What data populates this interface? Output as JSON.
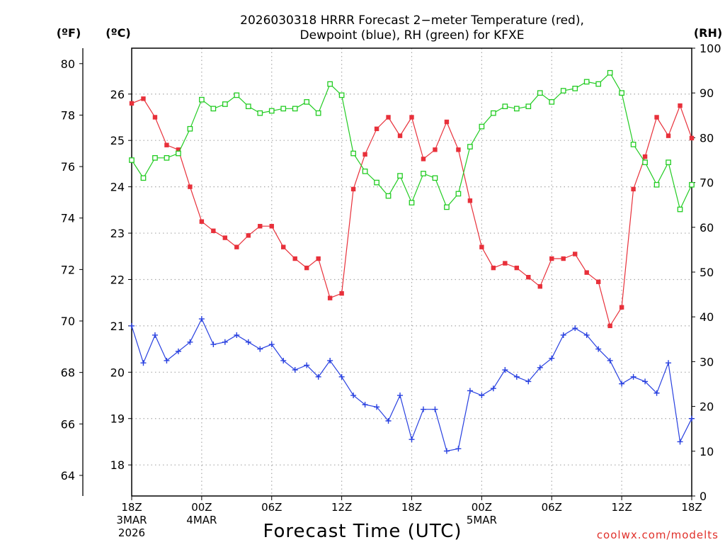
{
  "chart_data": {
    "type": "line",
    "title": [
      "2026030318 HRRR Forecast 2−meter Temperature (red),",
      "Dewpoint (blue), RH (green) for KFXE"
    ],
    "units": {
      "fahrenheit": "(ºF)",
      "celsius": "(ºC)",
      "rh": "(RH)"
    },
    "xlabel": "Forecast Time (UTC)",
    "credit": "coolwx.com/modelts",
    "x_range_hours": [
      0,
      48
    ],
    "celsius_axis": {
      "ylim": [
        17.33,
        26.99
      ],
      "ticks": [
        "18",
        "19",
        "20",
        "21",
        "22",
        "23",
        "24",
        "25",
        "26"
      ]
    },
    "fahrenheit_axis": {
      "ylim": [
        63.2,
        80.6
      ],
      "ticks": [
        "64",
        "66",
        "68",
        "70",
        "72",
        "74",
        "76",
        "78",
        "80"
      ]
    },
    "rh_axis": {
      "ylim": [
        0,
        100
      ],
      "ticks": [
        "0",
        "10",
        "20",
        "30",
        "40",
        "50",
        "60",
        "70",
        "80",
        "90",
        "100"
      ]
    },
    "x_ticks": [
      {
        "hour": 0,
        "lines": [
          "18Z",
          "3MAR",
          "2026"
        ]
      },
      {
        "hour": 6,
        "lines": [
          "00Z",
          "4MAR"
        ]
      },
      {
        "hour": 12,
        "lines": [
          "06Z"
        ]
      },
      {
        "hour": 18,
        "lines": [
          "12Z"
        ]
      },
      {
        "hour": 24,
        "lines": [
          "18Z"
        ]
      },
      {
        "hour": 30,
        "lines": [
          "00Z",
          "5MAR"
        ]
      },
      {
        "hour": 36,
        "lines": [
          "06Z"
        ]
      },
      {
        "hour": 42,
        "lines": [
          "12Z"
        ]
      },
      {
        "hour": 48,
        "lines": [
          "18Z"
        ]
      }
    ],
    "hours": [
      0,
      1,
      2,
      3,
      4,
      5,
      6,
      7,
      8,
      9,
      10,
      11,
      12,
      13,
      14,
      15,
      16,
      17,
      18,
      19,
      20,
      21,
      22,
      23,
      24,
      25,
      26,
      27,
      28,
      29,
      30,
      31,
      32,
      33,
      34,
      35,
      36,
      37,
      38,
      39,
      40,
      41,
      42,
      43,
      44,
      45,
      46,
      47,
      48
    ],
    "series": [
      {
        "name": "Temperature",
        "units": "C",
        "color": "#e8303a",
        "marker": "filled-square",
        "values": [
          25.8,
          25.9,
          25.5,
          24.9,
          24.8,
          24.0,
          23.25,
          23.05,
          22.9,
          22.7,
          22.95,
          23.15,
          23.15,
          22.7,
          22.45,
          22.25,
          22.45,
          21.6,
          21.7,
          23.95,
          24.7,
          25.25,
          25.5,
          25.1,
          25.5,
          24.6,
          24.8,
          25.4,
          24.8,
          23.7,
          22.7,
          22.25,
          22.35,
          22.25,
          22.05,
          21.85,
          22.45,
          22.45,
          22.55,
          22.15,
          21.95,
          21.0,
          21.4,
          23.95,
          24.65,
          25.5,
          25.1,
          25.75,
          25.05
        ]
      },
      {
        "name": "Dewpoint",
        "units": "C",
        "color": "#2840e0",
        "marker": "plus",
        "values": [
          21.0,
          20.2,
          20.8,
          20.25,
          20.45,
          20.65,
          21.15,
          20.6,
          20.65,
          20.8,
          20.65,
          20.5,
          20.6,
          20.25,
          20.05,
          20.15,
          19.9,
          20.25,
          19.9,
          19.5,
          19.3,
          19.25,
          18.95,
          19.5,
          18.55,
          19.2,
          19.2,
          18.3,
          18.35,
          19.6,
          19.5,
          19.65,
          20.05,
          19.9,
          19.8,
          20.1,
          20.3,
          20.8,
          20.95,
          20.8,
          20.5,
          20.25,
          19.75,
          19.9,
          19.8,
          19.55,
          20.2,
          18.5,
          19.0
        ]
      },
      {
        "name": "RH",
        "units": "%",
        "color": "#22cc22",
        "marker": "open-square",
        "values": [
          75.0,
          71.0,
          75.5,
          75.5,
          76.5,
          82.0,
          88.5,
          86.5,
          87.5,
          89.5,
          87.0,
          85.5,
          86.0,
          86.5,
          86.5,
          88.0,
          85.5,
          92.0,
          89.5,
          76.5,
          72.5,
          70.0,
          67.0,
          71.5,
          65.5,
          72.0,
          71.0,
          64.5,
          67.5,
          78.0,
          82.5,
          85.5,
          87.0,
          86.5,
          87.0,
          90.0,
          88.0,
          90.5,
          91.0,
          92.5,
          92.0,
          94.5,
          90.0,
          78.5,
          74.5,
          69.5,
          74.5,
          64.0,
          69.5
        ]
      }
    ]
  }
}
